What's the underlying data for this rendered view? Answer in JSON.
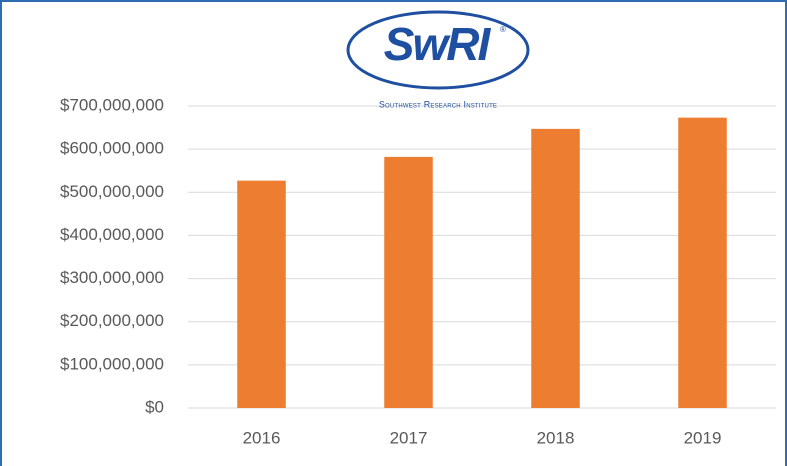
{
  "chart_data": {
    "type": "bar",
    "logo": {
      "text": "SwRI",
      "mark": "®",
      "tagline": "Southwest Research Institute"
    },
    "categories": [
      "2016",
      "2017",
      "2018",
      "2019"
    ],
    "values": [
      527000000,
      582000000,
      647000000,
      673000000
    ],
    "color": "#ed7d31",
    "ylim": [
      0,
      700000000
    ],
    "yticks": [
      {
        "value": 0,
        "label": "$0"
      },
      {
        "value": 100000000,
        "label": "$100,000,000"
      },
      {
        "value": 200000000,
        "label": "$200,000,000"
      },
      {
        "value": 300000000,
        "label": "$300,000,000"
      },
      {
        "value": 400000000,
        "label": "$400,000,000"
      },
      {
        "value": 500000000,
        "label": "$500,000,000"
      },
      {
        "value": 600000000,
        "label": "$600,000,000"
      },
      {
        "value": 700000000,
        "label": "$700,000,000"
      }
    ],
    "grid": true
  }
}
